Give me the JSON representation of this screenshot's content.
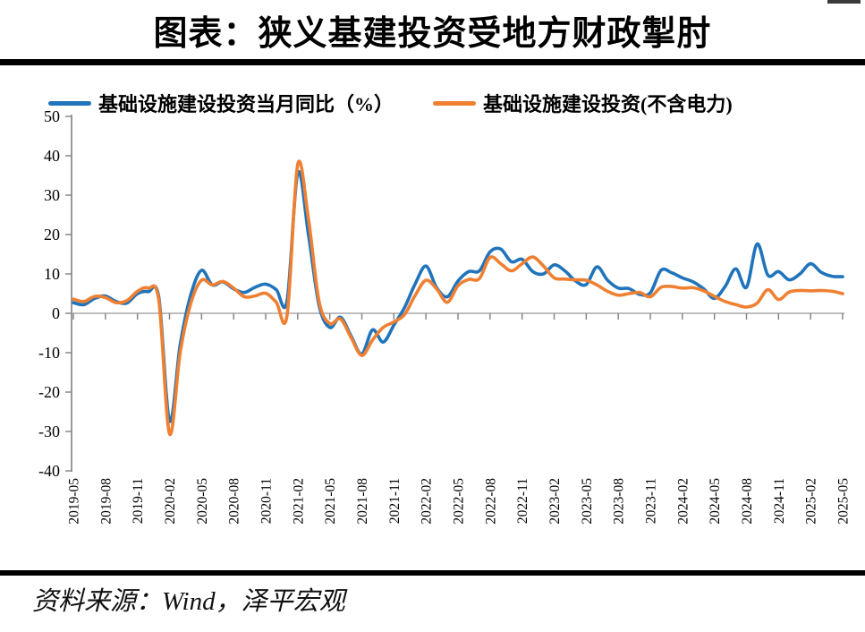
{
  "page": {
    "title": "图表：狭义基建投资受地方财政掣肘",
    "source": "资料来源：Wind，泽平宏观"
  },
  "legend": {
    "items": [
      {
        "label": "基础设施建设投资当月同比（%）",
        "color": "#1F74BB"
      },
      {
        "label": "基础设施建设投资(不含电力)",
        "color": "#EF8032"
      }
    ]
  },
  "chart_data": {
    "type": "line",
    "title": "图表：狭义基建投资受地方财政掣肘",
    "xlabel": "",
    "ylabel": "",
    "ylim": [
      -40,
      50
    ],
    "yticks": [
      50,
      40,
      30,
      20,
      10,
      0,
      -10,
      -20,
      -30,
      -40
    ],
    "xtick_every": 3,
    "grid": false,
    "legend_position": "top",
    "axis_color": "#808080",
    "zero_line_color": "#A9A9A9",
    "x": [
      "2019-05",
      "2019-06",
      "2019-07",
      "2019-08",
      "2019-09",
      "2019-10",
      "2019-11",
      "2019-12",
      "2020-01",
      "2020-02",
      "2020-03",
      "2020-04",
      "2020-05",
      "2020-06",
      "2020-07",
      "2020-08",
      "2020-09",
      "2020-10",
      "2020-11",
      "2020-12",
      "2021-01",
      "2021-02",
      "2021-03",
      "2021-04",
      "2021-05",
      "2021-06",
      "2021-07",
      "2021-08",
      "2021-09",
      "2021-10",
      "2021-11",
      "2021-12",
      "2022-01",
      "2022-02",
      "2022-03",
      "2022-04",
      "2022-05",
      "2022-06",
      "2022-07",
      "2022-08",
      "2022-09",
      "2022-10",
      "2022-11",
      "2022-12",
      "2023-01",
      "2023-02",
      "2023-03",
      "2023-04",
      "2023-05",
      "2023-06",
      "2023-07",
      "2023-08",
      "2023-09",
      "2023-10",
      "2023-11",
      "2023-12",
      "2024-01",
      "2024-02",
      "2024-03",
      "2024-04",
      "2024-05",
      "2024-06",
      "2024-07",
      "2024-08",
      "2024-09",
      "2024-10",
      "2024-11",
      "2024-12",
      "2025-01",
      "2025-02",
      "2025-03",
      "2025-04",
      "2025-05"
    ],
    "series": [
      {
        "name": "基础设施建设投资当月同比（%）",
        "color": "#1F74BB",
        "values": [
          2.7,
          2.2,
          3.8,
          4.4,
          3.0,
          2.6,
          5.0,
          5.5,
          4.0,
          -27.3,
          -8.0,
          4.8,
          10.9,
          7.2,
          8.0,
          6.2,
          5.3,
          6.6,
          7.4,
          6.0,
          3.2,
          35.6,
          20.0,
          2.0,
          -3.6,
          -1.0,
          -5.8,
          -10.3,
          -4.2,
          -7.3,
          -3.0,
          1.5,
          7.5,
          12.0,
          6.5,
          4.2,
          8.2,
          10.6,
          10.8,
          15.6,
          16.3,
          13.1,
          13.7,
          10.6,
          10.0,
          12.3,
          10.8,
          8.2,
          7.3,
          11.8,
          8.4,
          6.4,
          6.3,
          4.8,
          5.2,
          10.9,
          10.3,
          9.0,
          8.0,
          6.2,
          3.8,
          6.8,
          11.3,
          6.6,
          17.6,
          9.7,
          10.6,
          8.5,
          10.0,
          12.6,
          10.4,
          9.4,
          9.3
        ]
      },
      {
        "name": "基础设施建设投资(不含电力)",
        "color": "#EF8032",
        "values": [
          3.6,
          3.0,
          4.3,
          4.0,
          2.7,
          3.2,
          5.6,
          6.4,
          3.2,
          -30.6,
          -10.0,
          2.6,
          8.4,
          7.2,
          8.1,
          6.4,
          4.2,
          4.4,
          5.1,
          2.8,
          -0.5,
          37.8,
          24.0,
          3.0,
          -2.6,
          -1.4,
          -6.2,
          -10.7,
          -6.8,
          -3.6,
          -2.2,
          -0.3,
          4.6,
          8.4,
          6.2,
          2.8,
          7.0,
          8.6,
          8.8,
          14.2,
          12.6,
          10.8,
          12.6,
          14.3,
          12.0,
          9.0,
          8.7,
          8.5,
          8.4,
          7.2,
          5.6,
          4.6,
          5.0,
          5.3,
          4.2,
          6.6,
          6.8,
          6.4,
          6.5,
          5.7,
          4.3,
          3.0,
          2.2,
          1.6,
          2.6,
          6.0,
          3.5,
          5.4,
          5.8,
          5.7,
          5.8,
          5.6,
          5.0
        ]
      }
    ]
  }
}
